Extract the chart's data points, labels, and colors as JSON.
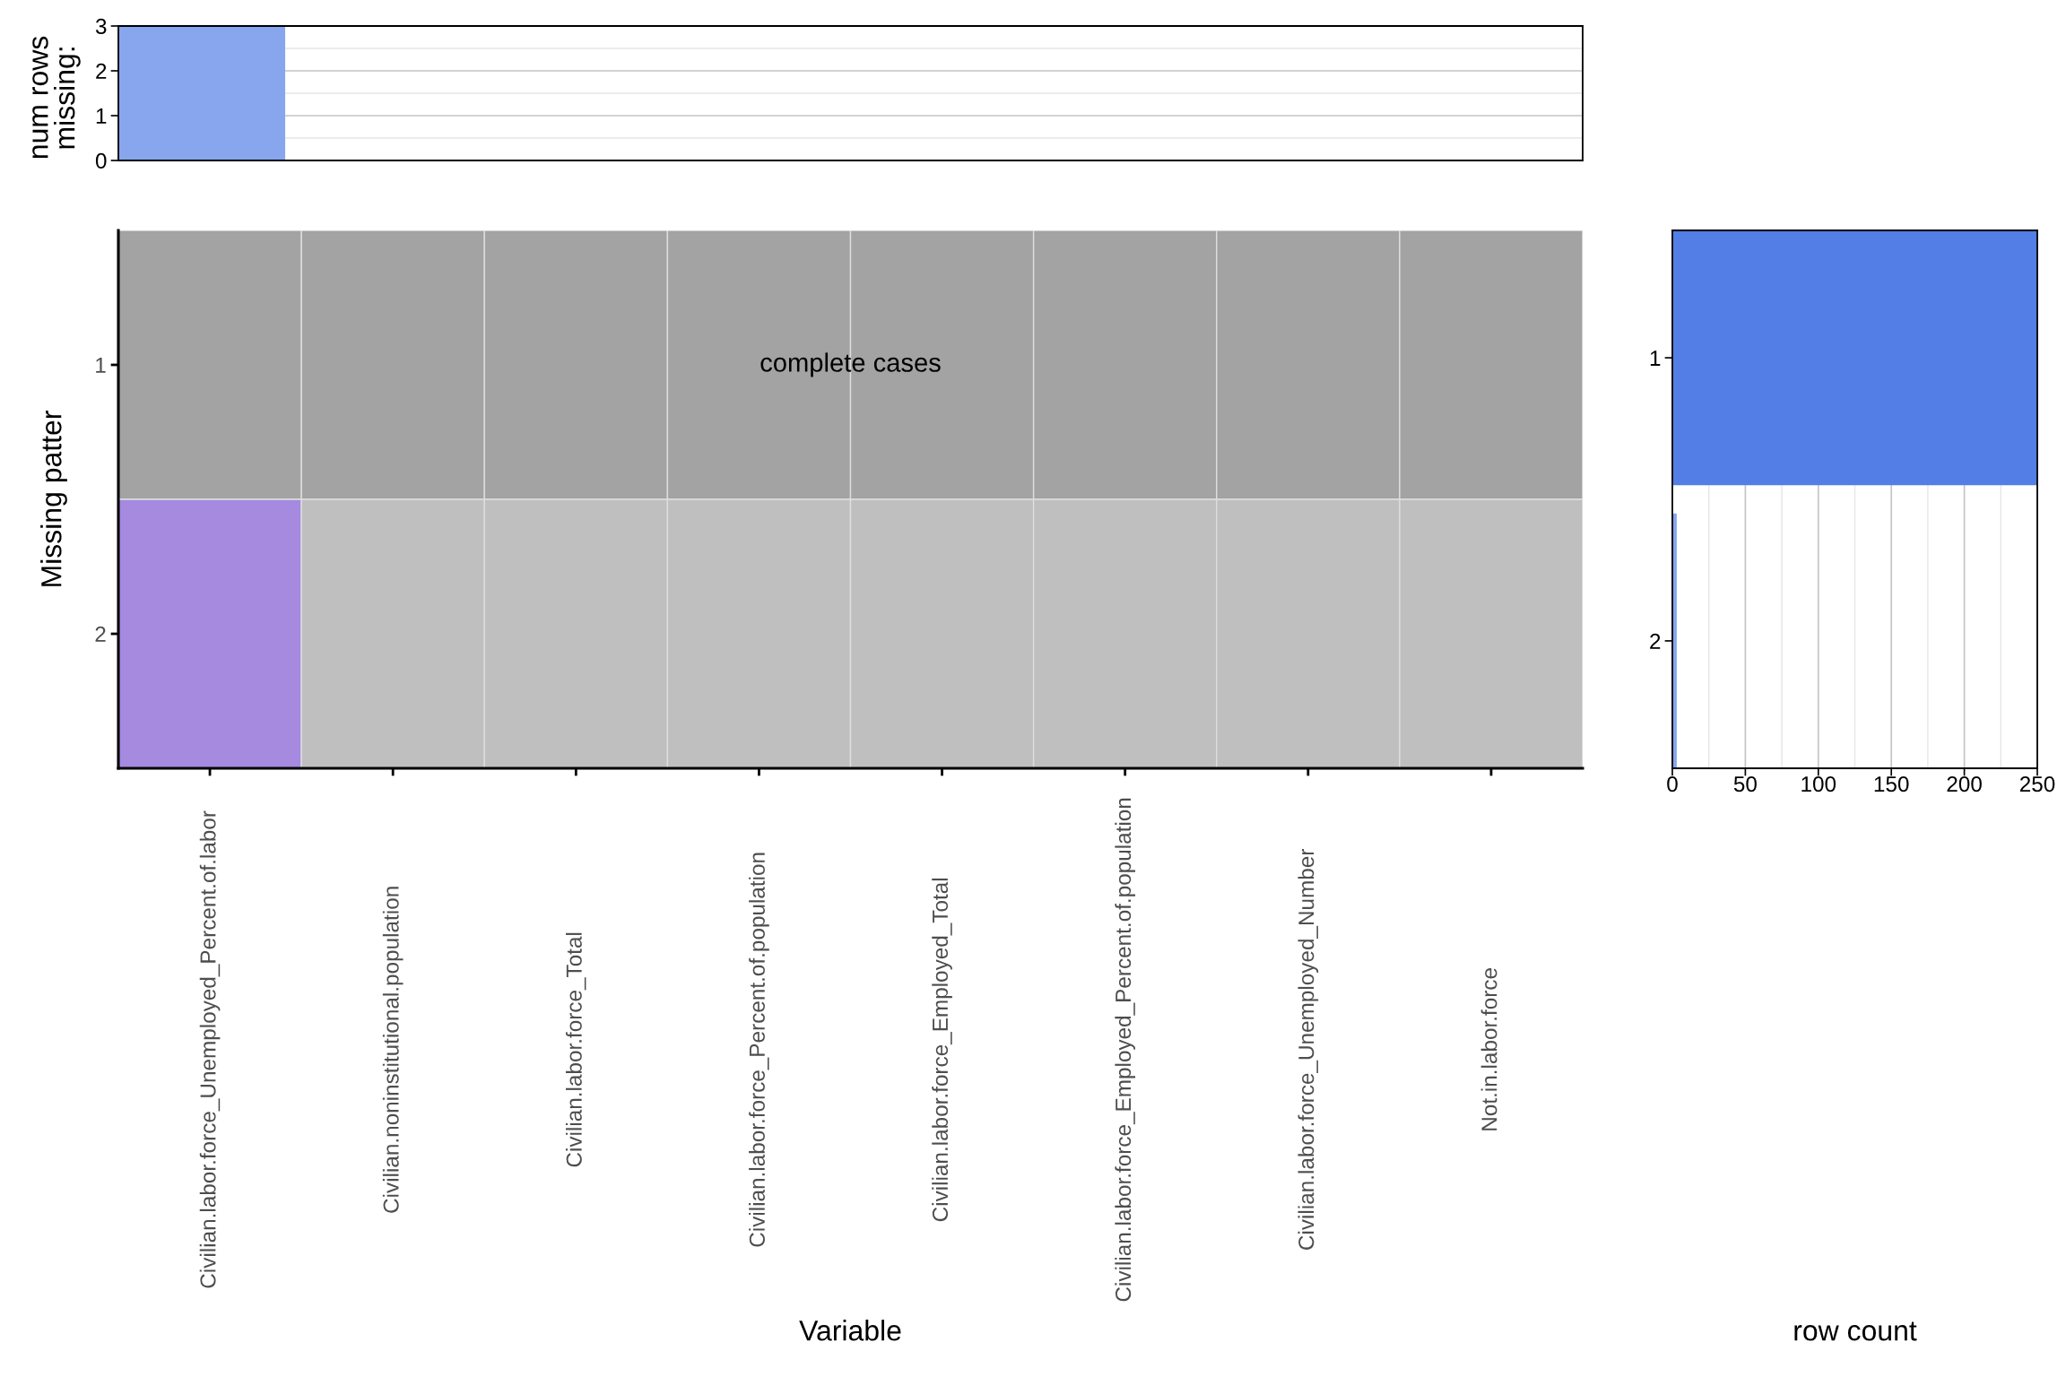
{
  "chart_data": [
    {
      "type": "bar",
      "categories": [
        null,
        null,
        null,
        null,
        null,
        null,
        null,
        null
      ],
      "values": [
        3,
        0,
        0,
        0,
        0,
        0,
        0,
        0
      ],
      "color": "#87a6ee",
      "ylim": [
        0,
        3
      ],
      "yticks": [
        0,
        1,
        2,
        3
      ],
      "ylabel": "num rows\nmissing:",
      "grid": "y",
      "tick_labels": "y"
    },
    {
      "type": "other",
      "categories": [
        "Civilian.labor.force_Unemployed_Percent.of.labor",
        "Civilian.noninstitutional.population",
        "Civilian.labor.force_Total",
        "Civilian.labor.force_Percent.of.population",
        "Civilian.labor.force_Employed_Total",
        "Civilian.labor.force_Employed_Percent.of.population",
        "Civilian.labor.force_Unemployed_Number",
        "Not.in.labor.force"
      ],
      "y_categories": [
        "1",
        "2"
      ],
      "colors": [
        [
          "#a3a3a3",
          "#a3a3a3",
          "#a3a3a3",
          "#a3a3a3",
          "#a3a3a3",
          "#a3a3a3",
          "#a3a3a3",
          "#a3a3a3"
        ],
        [
          "#a58ae0",
          "#bfbfbf",
          "#bfbfbf",
          "#bfbfbf",
          "#bfbfbf",
          "#bfbfbf",
          "#bfbfbf",
          "#bfbfbf"
        ]
      ],
      "xlabel": "Variable",
      "ylabel": "Missing patter",
      "annotations": [
        "complete cases"
      ]
    },
    {
      "type": "bar",
      "orientation": "horizontal",
      "categories": [
        "1",
        "2"
      ],
      "values": [
        250,
        3
      ],
      "colors": [
        "#527ee6",
        "#87a5ee"
      ],
      "xlim": [
        0,
        250
      ],
      "xticks": [
        0,
        50,
        100,
        150,
        200,
        250
      ],
      "xlabel": "row count",
      "grid": "x"
    }
  ]
}
